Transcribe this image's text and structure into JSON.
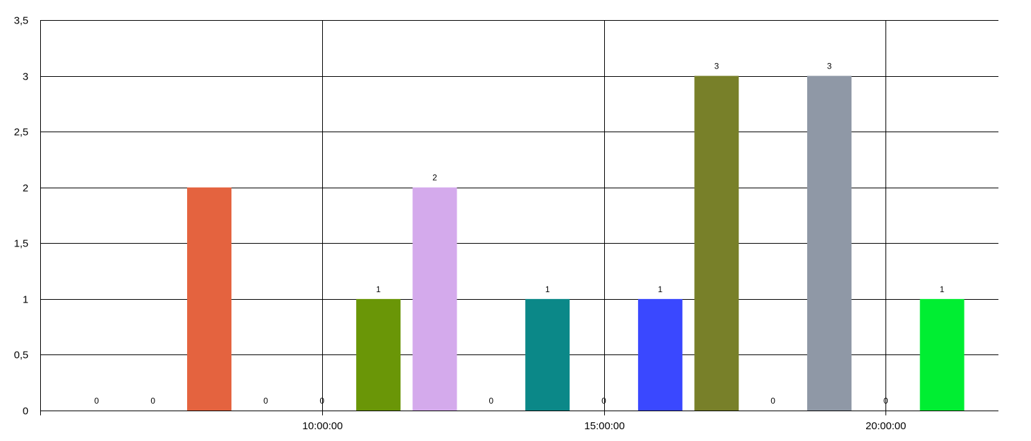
{
  "chart_data": {
    "type": "bar",
    "title": "",
    "xlabel": "",
    "ylabel": "",
    "ylim": [
      0,
      3.5
    ],
    "x_axis": {
      "type": "time",
      "range": [
        "05:00:00",
        "22:00:00"
      ]
    },
    "y_ticks": [
      "0",
      "0,5",
      "1",
      "1,5",
      "2",
      "2,5",
      "3",
      "3,5"
    ],
    "y_tick_values": [
      0,
      0.5,
      1,
      1.5,
      2,
      2.5,
      3,
      3.5
    ],
    "x_ticks": [
      {
        "time": "10:00:00",
        "label": "10:00:00"
      },
      {
        "time": "15:00:00",
        "label": "15:00:00"
      },
      {
        "time": "20:00:00",
        "label": "20:00:00"
      }
    ],
    "grid": true,
    "bars": [
      {
        "time": "06:00:00",
        "value": 0,
        "label": "0",
        "color": "#e4633f"
      },
      {
        "time": "07:00:00",
        "value": 0,
        "label": "0",
        "color": "#e4633f"
      },
      {
        "time": "08:00:00",
        "value": 2,
        "label": "",
        "color": "#e4633f"
      },
      {
        "time": "09:00:00",
        "value": 0,
        "label": "0",
        "color": "#e4633f"
      },
      {
        "time": "10:00:00",
        "value": 0,
        "label": "0",
        "color": "#e4633f"
      },
      {
        "time": "11:00:00",
        "value": 1,
        "label": "1",
        "color": "#6a9607"
      },
      {
        "time": "12:00:00",
        "value": 2,
        "label": "2",
        "color": "#d4aaec"
      },
      {
        "time": "13:00:00",
        "value": 0,
        "label": "0",
        "color": "#d4aaec"
      },
      {
        "time": "14:00:00",
        "value": 1,
        "label": "1",
        "color": "#0b8888"
      },
      {
        "time": "15:00:00",
        "value": 0,
        "label": "0",
        "color": "#0b8888"
      },
      {
        "time": "16:00:00",
        "value": 1,
        "label": "1",
        "color": "#3a48ff"
      },
      {
        "time": "17:00:00",
        "value": 3,
        "label": "3",
        "color": "#788029"
      },
      {
        "time": "18:00:00",
        "value": 0,
        "label": "0",
        "color": "#788029"
      },
      {
        "time": "19:00:00",
        "value": 3,
        "label": "3",
        "color": "#8f98a6"
      },
      {
        "time": "20:00:00",
        "value": 0,
        "label": "0",
        "color": "#8f98a6"
      },
      {
        "time": "21:00:00",
        "value": 1,
        "label": "1",
        "color": "#00ee32"
      }
    ]
  }
}
